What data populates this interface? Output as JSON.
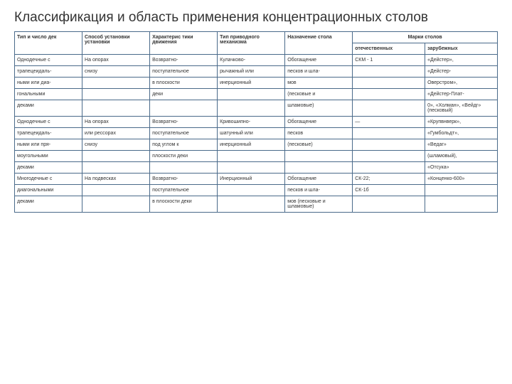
{
  "title": "Классификация и область применения  концентрационных столов",
  "headers": {
    "c1": "Тип и число дек",
    "c2": "Способ установки\n установки",
    "c3": "Характерис\nтики движения",
    "c4": "Тип приводного\n механизма",
    "c5": "Назначение стола",
    "c6merged": "Марки столов",
    "c6": "отечественных",
    "c7": "зарубежных"
  },
  "rows": [
    {
      "c1": "Однодечные с",
      "c2": "На опорах",
      "c3": "Возвратно-",
      "c4": "Кулачково-",
      "c5": "Обогащение",
      "c6": "СКМ - 1",
      "c7": "«Дейстер»,"
    },
    {
      "c1": "трапецеидаль-",
      "c2": "снизу",
      "c3": "поступательное",
      "c4": "рычажный или",
      "c5": "песков и шла-",
      "c6": "",
      "c7": "«Дейстер-"
    },
    {
      "c1": "ными или диа-",
      "c2": "",
      "c3": "в плоскости",
      "c4": "инерционный",
      "c5": "мов",
      "c6": "",
      "c7": "Оверстром»,"
    },
    {
      "c1": "гональными",
      "c2": "",
      "c3": "деки",
      "c4": "",
      "c5": "(песковые и",
      "c6": "",
      "c7": "«Дейстер-Плат-"
    },
    {
      "c1": "деками",
      "c2": "",
      "c3": "",
      "c4": "",
      "c5": "шламовые)",
      "c6": "",
      "c7": "0», «Холман», «Вейдг» (песковый)"
    },
    {
      "c1": "Однодечные с",
      "c2": "На опорах",
      "c3": "Возвратно-",
      "c4": "Кривошипно-",
      "c5": "Обогащение",
      "c6": "—",
      "c7": "«Крупвнверк»,"
    },
    {
      "c1": "трапецеидаль-",
      "c2": "или рессорах",
      "c3": "поступательное",
      "c4": "шатунный или",
      "c5": "песков",
      "c6": "",
      "c7": "«Гумбольдт»,"
    },
    {
      "c1": "ными или пря-",
      "c2": "снизу",
      "c3": "под углом к",
      "c4": "инерционный",
      "c5": "(песковые)",
      "c6": "",
      "c7": "«Ведаг»"
    },
    {
      "c1": "моугольными",
      "c2": "",
      "c3": "плоскости деки",
      "c4": "",
      "c5": "",
      "c6": "",
      "c7": "(шламовый),"
    },
    {
      "c1": "деками",
      "c2": "",
      "c3": "",
      "c4": "",
      "c5": "",
      "c6": "",
      "c7": "«Отсука»"
    },
    {
      "c1": "Многодечные с",
      "c2": "На подвесках",
      "c3": "Возвратно-",
      "c4": "Инерционный",
      "c5": "Обогащение",
      "c6": "СК-22;",
      "c7": "«Конценко-600»"
    },
    {
      "c1": "диагональными",
      "c2": "",
      "c3": "поступательное",
      "c4": "",
      "c5": "песков и шла-",
      "c6": "СК-1б",
      "c7": ""
    },
    {
      "c1": "деками",
      "c2": "",
      "c3": "в плоскости деки",
      "c4": "",
      "c5": "мов (песковые и шламовые)",
      "c6": "",
      "c7": ""
    }
  ]
}
